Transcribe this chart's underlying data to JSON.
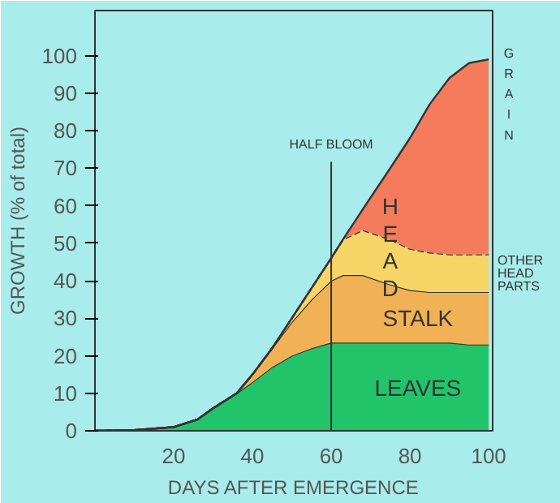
{
  "chart_data": {
    "type": "area",
    "stacked": true,
    "xlabel": "DAYS AFTER EMERGENCE",
    "ylabel": "GROWTH (% of total)",
    "x": [
      0,
      10,
      20,
      26,
      30,
      36,
      40,
      45,
      50,
      55,
      60,
      63,
      68,
      75,
      80,
      85,
      90,
      95,
      100
    ],
    "series": [
      {
        "name": "LEAVES",
        "color": "#22c46a",
        "values": [
          0,
          0.2,
          1,
          3,
          6,
          10,
          13,
          17,
          20,
          22,
          23.5,
          23.5,
          23.5,
          23.5,
          23.5,
          23.5,
          23.5,
          23,
          23
        ]
      },
      {
        "name": "STALK",
        "color": "#f0b255",
        "values": [
          0,
          0,
          0,
          0,
          0,
          0,
          2,
          5,
          9,
          13,
          16.5,
          18,
          18,
          15.5,
          14,
          13.5,
          13.5,
          14,
          14
        ]
      },
      {
        "name": "OTHER HEAD PARTS",
        "color": "#f6d465",
        "values": [
          0,
          0,
          0,
          0,
          0,
          0,
          0,
          0,
          1,
          3,
          6,
          9.5,
          12,
          12,
          11,
          10.5,
          10,
          10,
          10
        ],
        "line_style": "dashed"
      },
      {
        "name": "GRAIN",
        "color": "#f47c5c",
        "values": [
          0,
          0,
          0,
          0,
          0,
          0,
          0,
          0,
          0,
          0,
          0,
          0,
          5.5,
          19,
          29.5,
          39.5,
          47,
          51,
          52
        ]
      }
    ],
    "xlim": [
      0,
      101
    ],
    "ylim": [
      0,
      112
    ],
    "xticks": [
      20,
      40,
      60,
      80,
      100
    ],
    "yticks": [
      0,
      10,
      20,
      30,
      40,
      50,
      60,
      70,
      80,
      90,
      100
    ],
    "ref_lines": [
      {
        "axis": "x",
        "value": 60,
        "label": "HALF BLOOM"
      }
    ],
    "annotations": [
      "HEAD"
    ],
    "grid": false
  }
}
